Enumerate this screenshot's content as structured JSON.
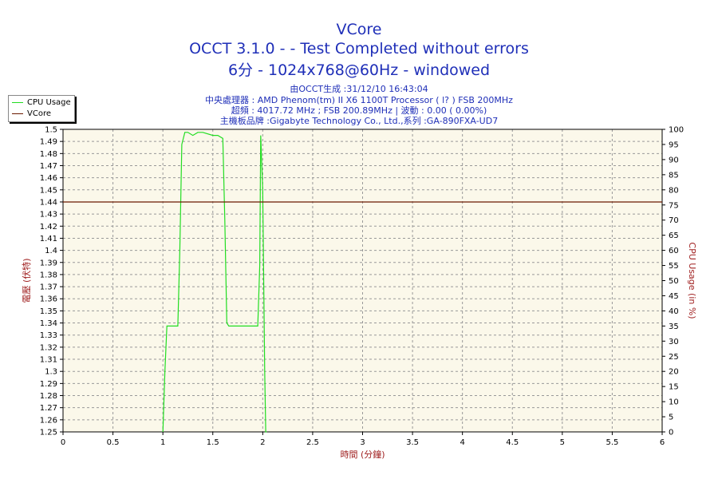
{
  "header": {
    "title": "VCore",
    "subtitle": "OCCT 3.1.0 -  - Test Completed without errors",
    "subtitle2": "6分 - 1024x768@60Hz - windowed",
    "info1": "由OCCT生成 :31/12/10 16:43:04",
    "info2": "中央處理器 : AMD Phenom(tm) II X6 1100T Processor (   l? ) FSB 200MHz",
    "info3": "超頻 : 4017.72 MHz ; FSB 200.89MHz | 波動 : 0.00 ( 0.00%)",
    "info4": "主機板品牌 :Gigabyte Technology Co., Ltd.,系列 :GA-890FXA-UD7"
  },
  "colors": {
    "cpu": "#22dd22",
    "vcore": "#6b1a00",
    "plot_bg": "#fbf8ea",
    "title": "#1f2fb8",
    "axis_label": "#a02020"
  },
  "chart_data": {
    "type": "line",
    "xlabel": "時間 (分鐘)",
    "ylabel": "電壓 (伏特)",
    "y2label": "CPU Usage (in %)",
    "xlim": [
      0,
      6
    ],
    "ylim": [
      1.25,
      1.5
    ],
    "y2lim": [
      0,
      100
    ],
    "grid": true,
    "legend_position": "top-left",
    "x_ticks": [
      "0",
      "0.5",
      "1",
      "1.5",
      "2",
      "2.5",
      "3",
      "3.5",
      "4",
      "4.5",
      "5",
      "5.5",
      "6"
    ],
    "y_ticks": [
      "1.25",
      "1.26",
      "1.27",
      "1.28",
      "1.29",
      "1.3",
      "1.31",
      "1.32",
      "1.33",
      "1.34",
      "1.35",
      "1.36",
      "1.37",
      "1.38",
      "1.39",
      "1.4",
      "1.41",
      "1.42",
      "1.43",
      "1.44",
      "1.45",
      "1.46",
      "1.47",
      "1.48",
      "1.49",
      "1.5"
    ],
    "y2_ticks": [
      "0",
      "5",
      "10",
      "15",
      "20",
      "25",
      "30",
      "35",
      "40",
      "45",
      "50",
      "55",
      "60",
      "65",
      "70",
      "75",
      "80",
      "85",
      "90",
      "95",
      "100"
    ],
    "series": [
      {
        "name": "CPU Usage",
        "axis": "right",
        "x": [
          1.0,
          1.02,
          1.04,
          1.06,
          1.1,
          1.15,
          1.17,
          1.19,
          1.22,
          1.25,
          1.3,
          1.35,
          1.4,
          1.5,
          1.55,
          1.6,
          1.62,
          1.64,
          1.66,
          1.7,
          1.8,
          1.9,
          1.95,
          1.97,
          1.98,
          2.0,
          2.02,
          2.03,
          2.04
        ],
        "y": [
          0,
          20,
          35,
          35,
          35,
          35,
          60,
          95,
          99,
          99,
          98,
          99,
          99,
          98,
          98,
          97,
          70,
          36,
          35,
          35,
          35,
          35,
          35,
          55,
          98,
          80,
          20,
          0,
          0
        ]
      },
      {
        "name": "VCore",
        "axis": "left",
        "x": [
          0,
          6
        ],
        "y": [
          1.44,
          1.44
        ]
      }
    ]
  }
}
